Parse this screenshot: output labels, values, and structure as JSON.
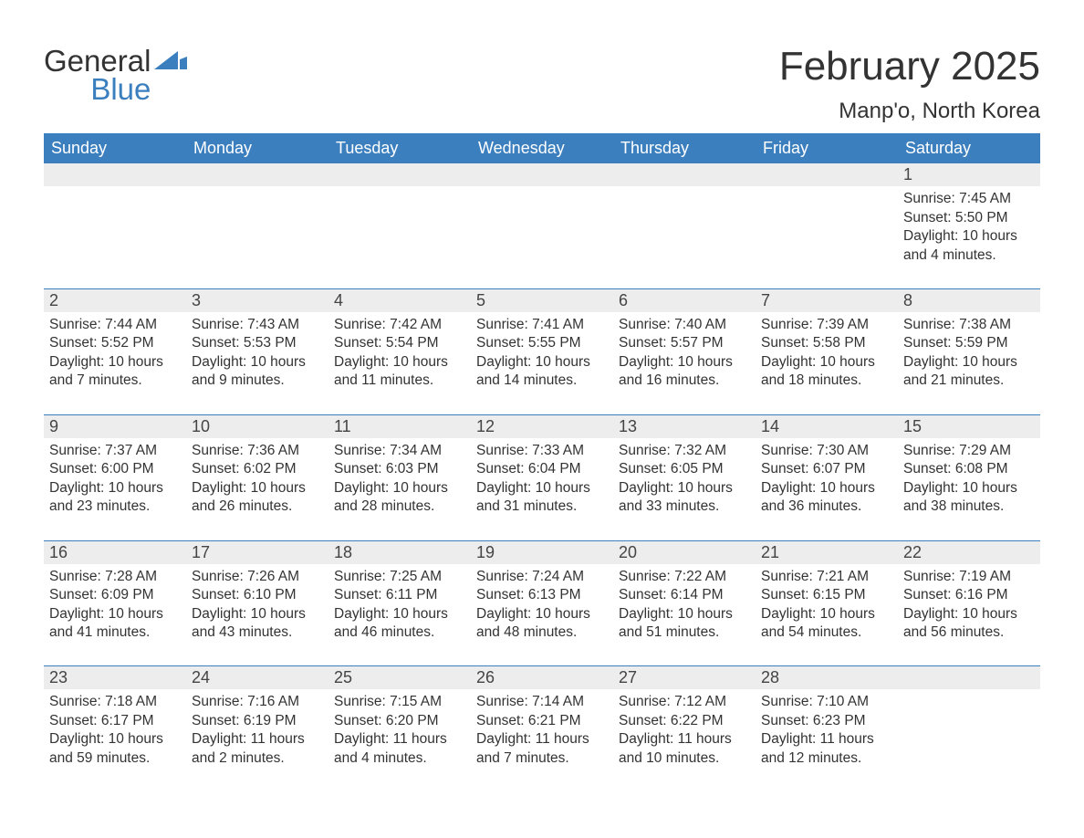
{
  "logo": {
    "word1": "General",
    "word2": "Blue",
    "flag_color": "#3b7fbf"
  },
  "title": "February 2025",
  "location": "Manp'o, North Korea",
  "colors": {
    "header_bg": "#3b7fbf",
    "header_text": "#ffffff",
    "daynum_bg": "#ededed",
    "text": "#333333",
    "rule": "#3b7fbf",
    "page_bg": "#ffffff"
  },
  "font": {
    "family": "Arial",
    "title_size_pt": 33,
    "location_size_pt": 18,
    "dow_size_pt": 14,
    "body_size_pt": 12
  },
  "layout": {
    "columns": 7,
    "rows": 5,
    "first_weekday": "Sunday",
    "leading_blanks": 6
  },
  "dow": [
    "Sunday",
    "Monday",
    "Tuesday",
    "Wednesday",
    "Thursday",
    "Friday",
    "Saturday"
  ],
  "days": [
    {
      "n": 1,
      "sunrise": "7:45 AM",
      "sunset": "5:50 PM",
      "daylight": "10 hours and 4 minutes."
    },
    {
      "n": 2,
      "sunrise": "7:44 AM",
      "sunset": "5:52 PM",
      "daylight": "10 hours and 7 minutes."
    },
    {
      "n": 3,
      "sunrise": "7:43 AM",
      "sunset": "5:53 PM",
      "daylight": "10 hours and 9 minutes."
    },
    {
      "n": 4,
      "sunrise": "7:42 AM",
      "sunset": "5:54 PM",
      "daylight": "10 hours and 11 minutes."
    },
    {
      "n": 5,
      "sunrise": "7:41 AM",
      "sunset": "5:55 PM",
      "daylight": "10 hours and 14 minutes."
    },
    {
      "n": 6,
      "sunrise": "7:40 AM",
      "sunset": "5:57 PM",
      "daylight": "10 hours and 16 minutes."
    },
    {
      "n": 7,
      "sunrise": "7:39 AM",
      "sunset": "5:58 PM",
      "daylight": "10 hours and 18 minutes."
    },
    {
      "n": 8,
      "sunrise": "7:38 AM",
      "sunset": "5:59 PM",
      "daylight": "10 hours and 21 minutes."
    },
    {
      "n": 9,
      "sunrise": "7:37 AM",
      "sunset": "6:00 PM",
      "daylight": "10 hours and 23 minutes."
    },
    {
      "n": 10,
      "sunrise": "7:36 AM",
      "sunset": "6:02 PM",
      "daylight": "10 hours and 26 minutes."
    },
    {
      "n": 11,
      "sunrise": "7:34 AM",
      "sunset": "6:03 PM",
      "daylight": "10 hours and 28 minutes."
    },
    {
      "n": 12,
      "sunrise": "7:33 AM",
      "sunset": "6:04 PM",
      "daylight": "10 hours and 31 minutes."
    },
    {
      "n": 13,
      "sunrise": "7:32 AM",
      "sunset": "6:05 PM",
      "daylight": "10 hours and 33 minutes."
    },
    {
      "n": 14,
      "sunrise": "7:30 AM",
      "sunset": "6:07 PM",
      "daylight": "10 hours and 36 minutes."
    },
    {
      "n": 15,
      "sunrise": "7:29 AM",
      "sunset": "6:08 PM",
      "daylight": "10 hours and 38 minutes."
    },
    {
      "n": 16,
      "sunrise": "7:28 AM",
      "sunset": "6:09 PM",
      "daylight": "10 hours and 41 minutes."
    },
    {
      "n": 17,
      "sunrise": "7:26 AM",
      "sunset": "6:10 PM",
      "daylight": "10 hours and 43 minutes."
    },
    {
      "n": 18,
      "sunrise": "7:25 AM",
      "sunset": "6:11 PM",
      "daylight": "10 hours and 46 minutes."
    },
    {
      "n": 19,
      "sunrise": "7:24 AM",
      "sunset": "6:13 PM",
      "daylight": "10 hours and 48 minutes."
    },
    {
      "n": 20,
      "sunrise": "7:22 AM",
      "sunset": "6:14 PM",
      "daylight": "10 hours and 51 minutes."
    },
    {
      "n": 21,
      "sunrise": "7:21 AM",
      "sunset": "6:15 PM",
      "daylight": "10 hours and 54 minutes."
    },
    {
      "n": 22,
      "sunrise": "7:19 AM",
      "sunset": "6:16 PM",
      "daylight": "10 hours and 56 minutes."
    },
    {
      "n": 23,
      "sunrise": "7:18 AM",
      "sunset": "6:17 PM",
      "daylight": "10 hours and 59 minutes."
    },
    {
      "n": 24,
      "sunrise": "7:16 AM",
      "sunset": "6:19 PM",
      "daylight": "11 hours and 2 minutes."
    },
    {
      "n": 25,
      "sunrise": "7:15 AM",
      "sunset": "6:20 PM",
      "daylight": "11 hours and 4 minutes."
    },
    {
      "n": 26,
      "sunrise": "7:14 AM",
      "sunset": "6:21 PM",
      "daylight": "11 hours and 7 minutes."
    },
    {
      "n": 27,
      "sunrise": "7:12 AM",
      "sunset": "6:22 PM",
      "daylight": "11 hours and 10 minutes."
    },
    {
      "n": 28,
      "sunrise": "7:10 AM",
      "sunset": "6:23 PM",
      "daylight": "11 hours and 12 minutes."
    }
  ],
  "labels": {
    "sunrise": "Sunrise:",
    "sunset": "Sunset:",
    "daylight": "Daylight:"
  }
}
